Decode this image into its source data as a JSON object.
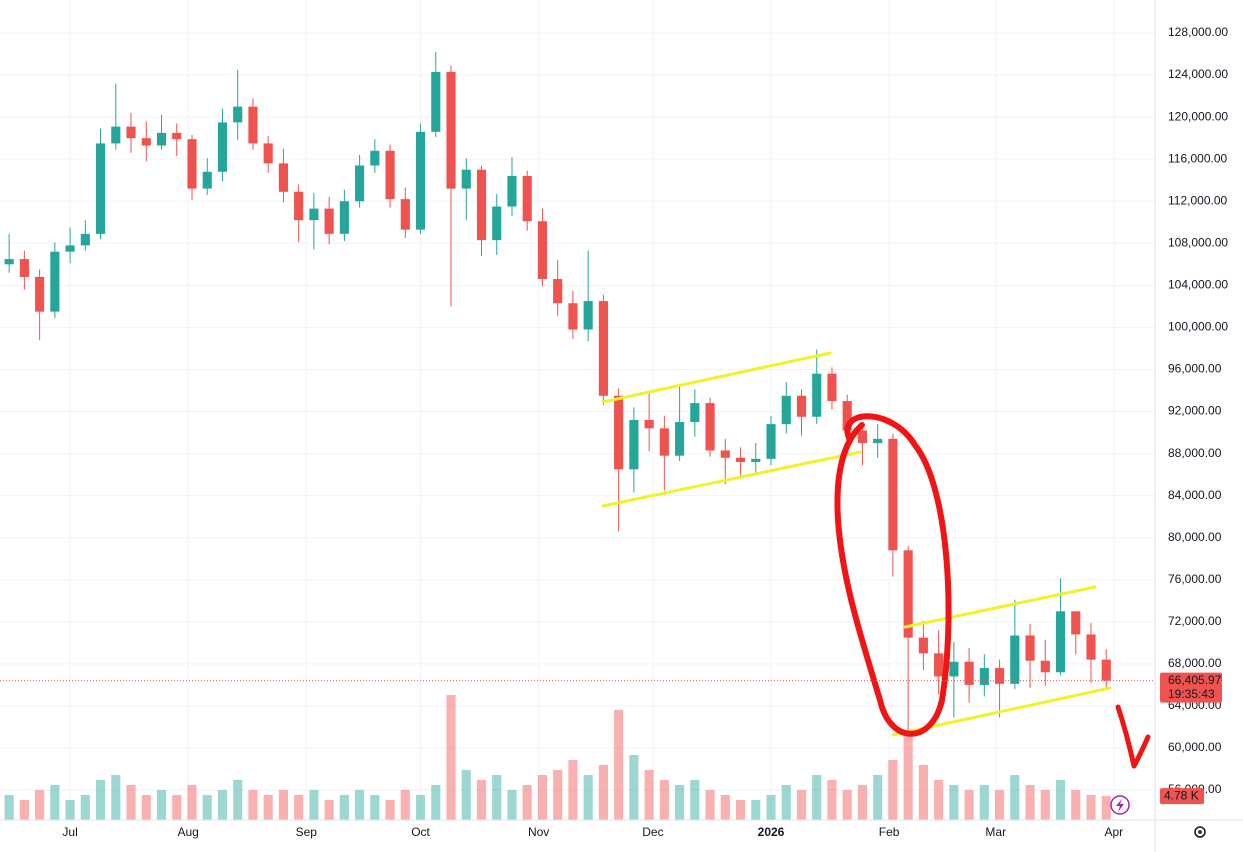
{
  "chart_data": {
    "type": "candlestick",
    "up_color": "#26a69a",
    "down_color": "#ef5350",
    "grid": true,
    "xlim": [
      -18.4,
      284.8
    ],
    "xticks": [
      {
        "value": 0,
        "label": "Jul"
      },
      {
        "value": 31,
        "label": "Aug"
      },
      {
        "value": 62,
        "label": "Sep"
      },
      {
        "value": 92,
        "label": "Oct"
      },
      {
        "value": 123,
        "label": "Nov"
      },
      {
        "value": 153,
        "label": "Dec"
      },
      {
        "value": 184,
        "label": "2026"
      },
      {
        "value": 215,
        "label": "Feb"
      },
      {
        "value": 243,
        "label": "Mar"
      },
      {
        "value": 274,
        "label": "Apr"
      }
    ],
    "ylim": [
      53150,
      131140
    ],
    "yticks": [
      {
        "value": 56000,
        "label": "56,000.00"
      },
      {
        "value": 60000,
        "label": "60,000.00"
      },
      {
        "value": 64000,
        "label": "64,000.00"
      },
      {
        "value": 68000,
        "label": "68,000.00"
      },
      {
        "value": 72000,
        "label": "72,000.00"
      },
      {
        "value": 76000,
        "label": "76,000.00"
      },
      {
        "value": 80000,
        "label": "80,000.00"
      },
      {
        "value": 84000,
        "label": "84,000.00"
      },
      {
        "value": 88000,
        "label": "88,000.00"
      },
      {
        "value": 92000,
        "label": "92,000.00"
      },
      {
        "value": 96000,
        "label": "96,000.00"
      },
      {
        "value": 100000,
        "label": "100,000.00"
      },
      {
        "value": 104000,
        "label": "104,000.00"
      },
      {
        "value": 108000,
        "label": "108,000.00"
      },
      {
        "value": 112000,
        "label": "112,000.00"
      },
      {
        "value": 116000,
        "label": "116,000.00"
      },
      {
        "value": 120000,
        "label": "120,000.00"
      },
      {
        "value": 124000,
        "label": "124,000.00"
      },
      {
        "value": 128000,
        "label": "128,000.00"
      }
    ],
    "vlim": [
      0,
      28
    ],
    "x": [
      -16,
      -12,
      -8,
      -4,
      0,
      4,
      8,
      12,
      16,
      20,
      24,
      28,
      32,
      36,
      40,
      44,
      48,
      52,
      56,
      60,
      64,
      68,
      72,
      76,
      80,
      84,
      88,
      92,
      96,
      100,
      104,
      108,
      112,
      116,
      120,
      124,
      128,
      132,
      136,
      140,
      144,
      148,
      152,
      156,
      160,
      164,
      168,
      172,
      176,
      180,
      184,
      188,
      192,
      196,
      200,
      204,
      208,
      212,
      216,
      220,
      224,
      228,
      232,
      236,
      240,
      244,
      248,
      252,
      256,
      260,
      264,
      268,
      272
    ],
    "open": [
      106000,
      106500,
      104800,
      101500,
      107200,
      107800,
      108900,
      117500,
      119100,
      118000,
      117300,
      118500,
      117900,
      113200,
      114800,
      119500,
      121000,
      117500,
      115600,
      112900,
      110200,
      111300,
      108900,
      112000,
      115400,
      116800,
      112200,
      109300,
      118600,
      124300,
      113200,
      115000,
      108300,
      111500,
      114400,
      110100,
      104600,
      102300,
      99800,
      102500,
      93500,
      86500,
      91200,
      90400,
      87800,
      91000,
      92800,
      88300,
      87600,
      87200,
      87500,
      90800,
      93500,
      91500,
      95600,
      93000,
      90200,
      89000,
      89400,
      78800,
      70500,
      69000,
      66800,
      68200,
      66000,
      67600,
      66100,
      70700,
      68300,
      67200,
      73000,
      70800,
      68400
    ],
    "high": [
      108900,
      107300,
      105500,
      108100,
      109500,
      110200,
      118900,
      123200,
      120400,
      119600,
      120200,
      119400,
      118300,
      116100,
      120800,
      124500,
      121800,
      118200,
      117000,
      113600,
      112800,
      112400,
      113100,
      116400,
      117900,
      117400,
      113300,
      119400,
      126200,
      124900,
      116100,
      115400,
      112700,
      116200,
      114900,
      111300,
      106400,
      103500,
      107300,
      103100,
      94200,
      92400,
      93900,
      91600,
      94500,
      94100,
      93300,
      89400,
      88600,
      89000,
      91600,
      94800,
      94100,
      97900,
      96200,
      93600,
      90700,
      90800,
      89900,
      79200,
      72100,
      71200,
      70100,
      69500,
      68900,
      68400,
      74100,
      71800,
      70300,
      76100,
      72600,
      71900,
      69400
    ],
    "low": [
      105200,
      103600,
      98800,
      100900,
      106100,
      107300,
      108400,
      116900,
      116600,
      115800,
      116900,
      116300,
      112100,
      112600,
      113900,
      117800,
      116900,
      114700,
      111900,
      108100,
      107400,
      107900,
      108200,
      111400,
      114700,
      111400,
      108500,
      108900,
      118100,
      102000,
      110200,
      106800,
      106900,
      110600,
      109200,
      103900,
      101100,
      98900,
      98700,
      92600,
      80600,
      84300,
      88200,
      84500,
      87300,
      89600,
      87700,
      85100,
      85700,
      86200,
      86900,
      89900,
      89700,
      90800,
      92200,
      89500,
      86900,
      87600,
      76300,
      61500,
      67400,
      65100,
      62900,
      64300,
      64900,
      62900,
      65600,
      65700,
      65900,
      66900,
      68900,
      66200,
      65700
    ],
    "close": [
      106500,
      104800,
      101500,
      107200,
      107800,
      108900,
      117500,
      119100,
      118000,
      117300,
      118500,
      117900,
      113200,
      114800,
      119500,
      121000,
      117500,
      115600,
      112900,
      110200,
      111300,
      108900,
      112000,
      115400,
      116800,
      112200,
      109300,
      118600,
      124300,
      113200,
      115000,
      108300,
      111500,
      114400,
      110100,
      104600,
      102300,
      99800,
      102500,
      93500,
      86500,
      91200,
      90400,
      87800,
      91000,
      92800,
      88300,
      87600,
      87200,
      87500,
      90800,
      93500,
      91500,
      95600,
      93000,
      90200,
      89000,
      89400,
      78800,
      70500,
      69000,
      66800,
      68200,
      66000,
      67600,
      66100,
      70700,
      68300,
      67200,
      73000,
      70800,
      68400,
      66405.97
    ],
    "volume": [
      5,
      4,
      6,
      7,
      4,
      5,
      8,
      9,
      7,
      5,
      6,
      5,
      7,
      5,
      6,
      8,
      6,
      5,
      6,
      5,
      6,
      4,
      5,
      6,
      5,
      4,
      6,
      5,
      7,
      25,
      10,
      8,
      9,
      6,
      7,
      9,
      10,
      12,
      9,
      11,
      22,
      13,
      10,
      8,
      7,
      8,
      6,
      5,
      4,
      4,
      5,
      7,
      6,
      9,
      8,
      6,
      7,
      9,
      12,
      18,
      11,
      8,
      7,
      6,
      7,
      6,
      9,
      7,
      6,
      8,
      6,
      5,
      4.78
    ],
    "last_price": {
      "value": 66405.97,
      "label": "66,405.97"
    },
    "countdown": "19:35:43",
    "last_volume": {
      "value": 4.78,
      "label": "4.78 K"
    }
  }
}
